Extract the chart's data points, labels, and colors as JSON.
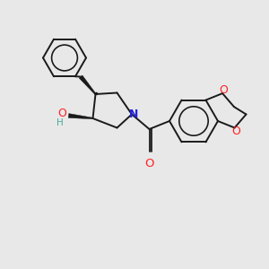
{
  "background_color": "#e8e8e8",
  "bond_color": "#1a1a1a",
  "atom_colors": {
    "O": "#ff2222",
    "N": "#2222dd",
    "H": "#4aaa99",
    "C": "#1a1a1a"
  },
  "figure_size": [
    3.0,
    3.0
  ],
  "dpi": 100
}
